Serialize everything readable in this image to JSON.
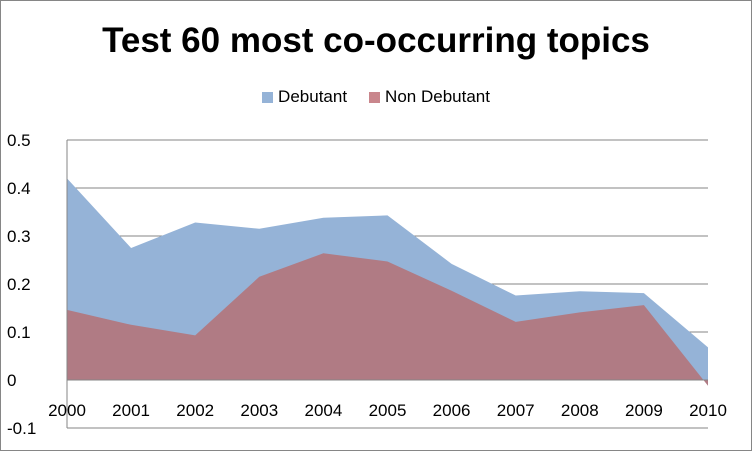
{
  "chart_data": {
    "type": "area",
    "title": "Test 60 most co-occurring topics",
    "x": [
      "2000",
      "2001",
      "2002",
      "2003",
      "2004",
      "2005",
      "2006",
      "2007",
      "2008",
      "2009",
      "2010"
    ],
    "series": [
      {
        "name": "Debutant",
        "color": "#95b3d7",
        "values": [
          0.42,
          0.275,
          0.328,
          0.315,
          0.338,
          0.343,
          0.242,
          0.176,
          0.185,
          0.181,
          0.068
        ]
      },
      {
        "name": "Non Debutant",
        "color": "#b07b84",
        "values": [
          0.146,
          0.115,
          0.093,
          0.215,
          0.264,
          0.247,
          0.186,
          0.121,
          0.141,
          0.156,
          -0.012
        ]
      }
    ],
    "ylim": [
      -0.1,
      0.5
    ],
    "yticks": [
      "-0.1",
      "0",
      "0.1",
      "0.2",
      "0.3",
      "0.4",
      "0.5"
    ],
    "grid": true,
    "legend_position": "top"
  }
}
